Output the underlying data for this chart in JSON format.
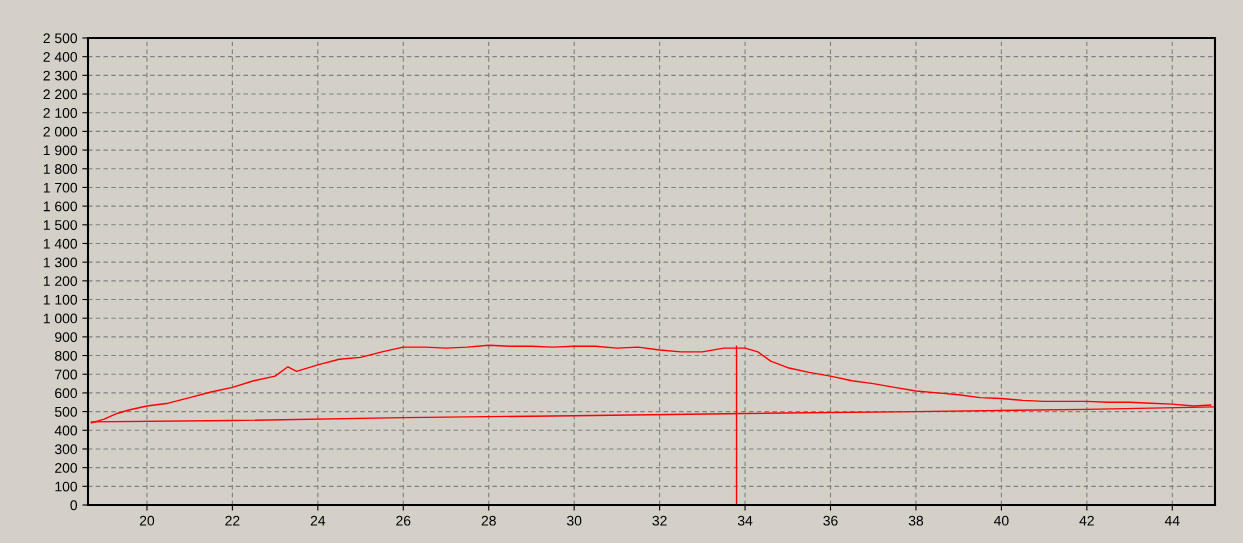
{
  "chart_data": {
    "type": "line",
    "xlim": [
      18.62,
      45
    ],
    "xticks": [
      20,
      22,
      24,
      26,
      28,
      30,
      32,
      34,
      36,
      38,
      40,
      42,
      44
    ],
    "ylim": [
      0,
      2500
    ],
    "yticks": [
      0,
      100,
      200,
      300,
      400,
      500,
      600,
      700,
      800,
      900,
      {
        "value": 1000,
        "label": "1 000"
      },
      {
        "value": 1100,
        "label": "1 100"
      },
      {
        "value": 1200,
        "label": "1 200"
      },
      {
        "value": 1300,
        "label": "1 300"
      },
      {
        "value": 1400,
        "label": "1 400"
      },
      {
        "value": 1500,
        "label": "1 500"
      },
      {
        "value": 1600,
        "label": "1 600"
      },
      {
        "value": 1700,
        "label": "1 700"
      },
      {
        "value": 1800,
        "label": "1 800"
      },
      {
        "value": 1900,
        "label": "1 900"
      },
      {
        "value": 2000,
        "label": "2 000"
      },
      {
        "value": 2100,
        "label": "2 100"
      },
      {
        "value": 2200,
        "label": "2 200"
      },
      {
        "value": 2300,
        "label": "2 300"
      },
      {
        "value": 2400,
        "label": "2 400"
      },
      {
        "value": 2500,
        "label": "2 500"
      }
    ],
    "grid": true,
    "marker": "none",
    "line_style": "solid",
    "series": [
      {
        "color": "#ff0000",
        "x": [
          18.7,
          19,
          19.3,
          19.6,
          20,
          20.5,
          21,
          21.5,
          22,
          22.5,
          23,
          23.3,
          23.5,
          24,
          24.5,
          25,
          25.5,
          26,
          26.5,
          27,
          27.5,
          28,
          28.5,
          29,
          29.5,
          30,
          30.5,
          31,
          31.5,
          32,
          32.5,
          33,
          33.5,
          34,
          34.3,
          34.6,
          35,
          35.5,
          36,
          36.5,
          37,
          37.5,
          38,
          38.5,
          39,
          39.5,
          40,
          40.5,
          41,
          41.5,
          42,
          42.5,
          43,
          43.5,
          44,
          44.5,
          44.9
        ],
        "values": [
          440,
          460,
          490,
          510,
          530,
          545,
          575,
          605,
          630,
          665,
          690,
          740,
          715,
          750,
          780,
          790,
          820,
          845,
          845,
          840,
          845,
          855,
          850,
          850,
          845,
          850,
          850,
          840,
          845,
          830,
          820,
          820,
          840,
          840,
          820,
          770,
          735,
          710,
          690,
          665,
          650,
          630,
          610,
          600,
          590,
          575,
          570,
          560,
          555,
          555,
          555,
          550,
          550,
          545,
          540,
          530,
          535
        ]
      },
      {
        "color": "#ff0000",
        "x": [
          18.7,
          22,
          26,
          30,
          34,
          38,
          42,
          45
        ],
        "values": [
          445,
          452,
          468,
          478,
          490,
          500,
          512,
          525
        ]
      },
      {
        "color": "#ff0000",
        "x": [
          33.8,
          33.8
        ],
        "values": [
          0,
          850
        ]
      }
    ]
  }
}
